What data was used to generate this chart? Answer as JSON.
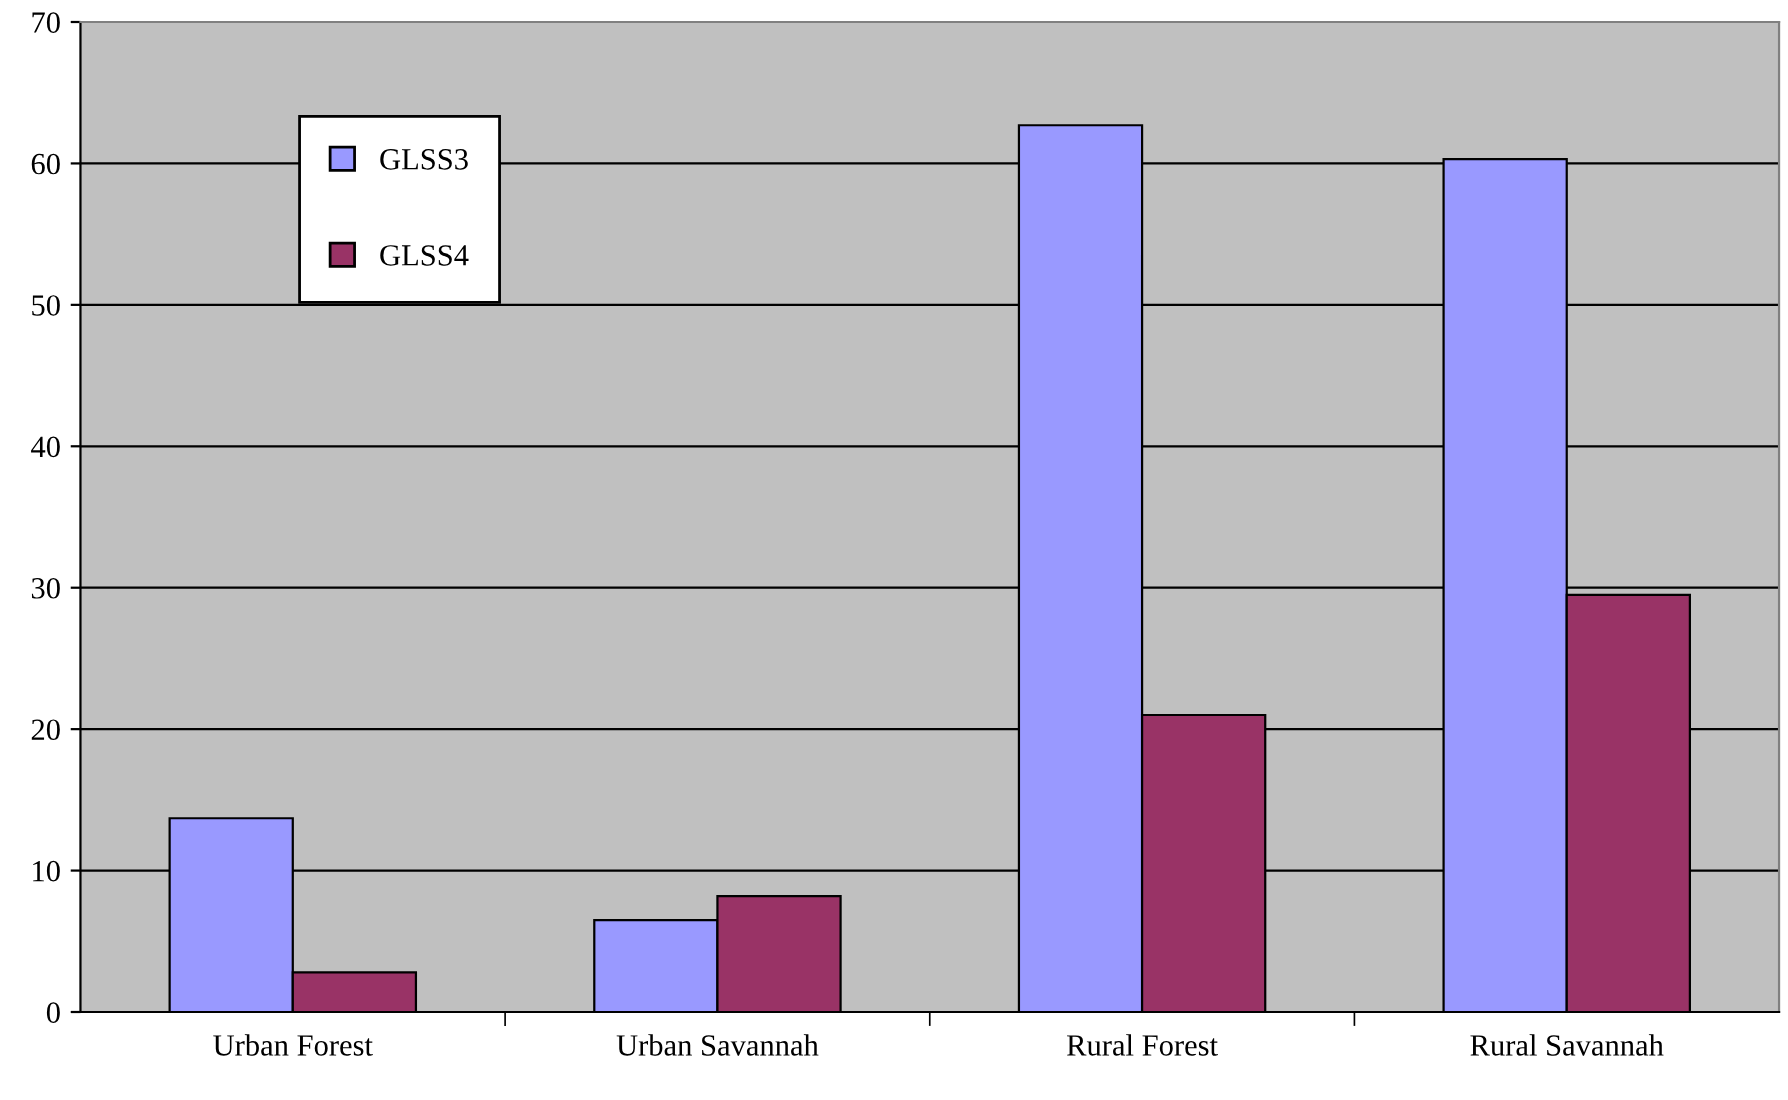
{
  "chart_data": {
    "type": "bar",
    "categories": [
      "Urban Forest",
      "Urban Savannah",
      "Rural Forest",
      "Rural Savannah"
    ],
    "series": [
      {
        "name": "GLSS3",
        "color": "#9999ff",
        "values": [
          13.7,
          6.5,
          62.7,
          60.3
        ]
      },
      {
        "name": "GLSS4",
        "color": "#993366",
        "values": [
          2.8,
          8.2,
          21.0,
          29.5
        ]
      }
    ],
    "ylim": [
      0,
      70
    ],
    "yticks": [
      0,
      10,
      20,
      30,
      40,
      50,
      60,
      70
    ],
    "grid": "y",
    "legend": "top left"
  }
}
